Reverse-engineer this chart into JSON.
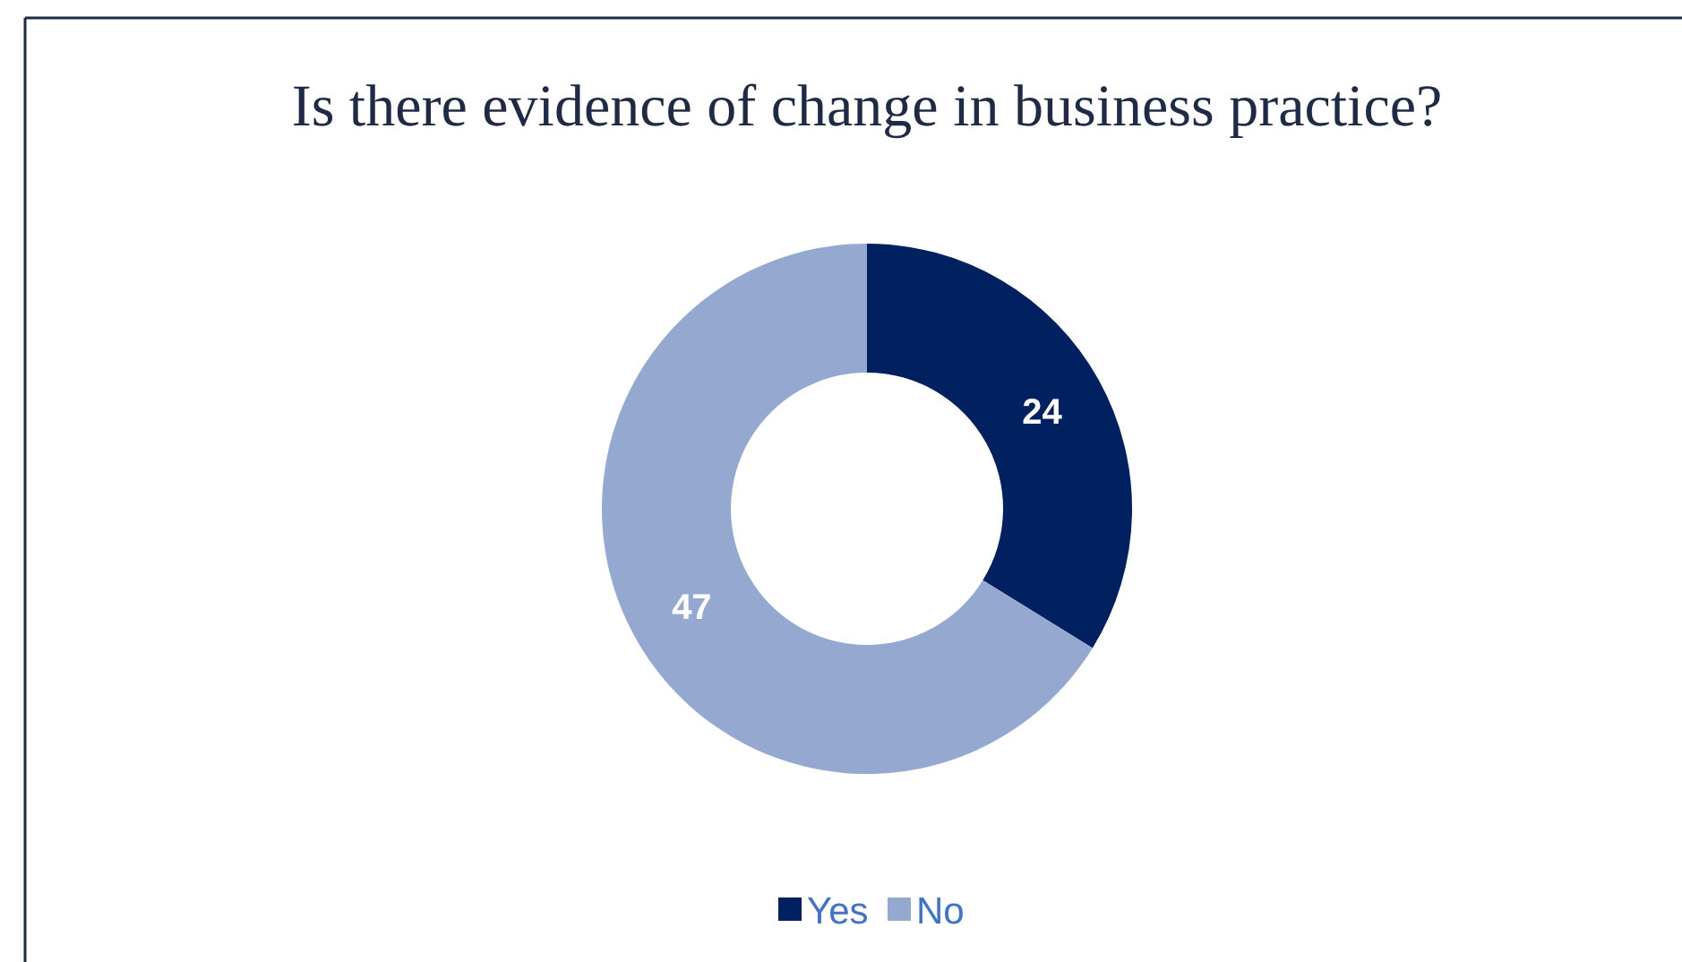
{
  "chart_data": {
    "type": "donut",
    "title": "Is there evidence of change in business practice?",
    "categories": [
      "Yes",
      "No"
    ],
    "values": [
      24,
      47
    ],
    "colors": [
      "#002060",
      "#95a9d0"
    ],
    "data_labels": true,
    "legend": "bottom"
  }
}
